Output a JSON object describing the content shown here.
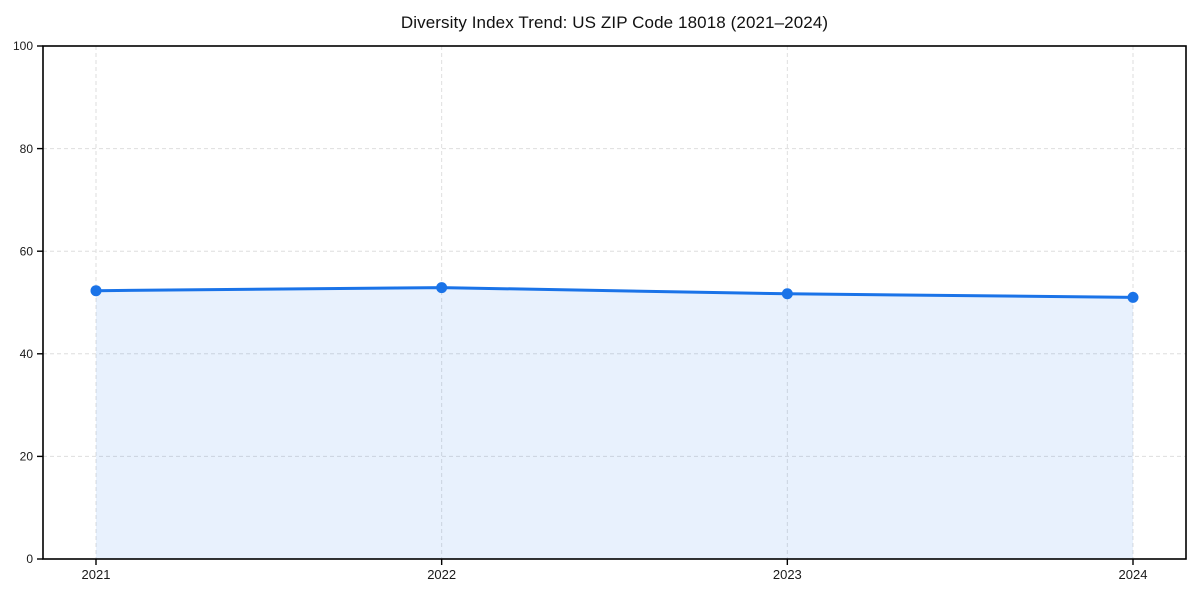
{
  "chart_data": {
    "type": "area",
    "title": "Diversity Index Trend: US ZIP Code 18018 (2021–2024)",
    "categories": [
      "2021",
      "2022",
      "2023",
      "2024"
    ],
    "series": [
      {
        "name": "Diversity Index",
        "values": [
          52.3,
          52.9,
          51.7,
          51.0
        ]
      }
    ],
    "xlabel": "",
    "ylabel": "",
    "ylim": [
      0,
      100
    ],
    "yticks": [
      0,
      20,
      40,
      60,
      80,
      100
    ],
    "grid": true,
    "grid_style": "dashed",
    "legend": "none",
    "colors": {
      "line": "#1a73e8",
      "marker": "#1a73e8",
      "fill": "rgba(26,115,232,0.10)",
      "gridline": "#dedede",
      "spine": "#000000",
      "tick_label": "#1a1a1a"
    }
  }
}
